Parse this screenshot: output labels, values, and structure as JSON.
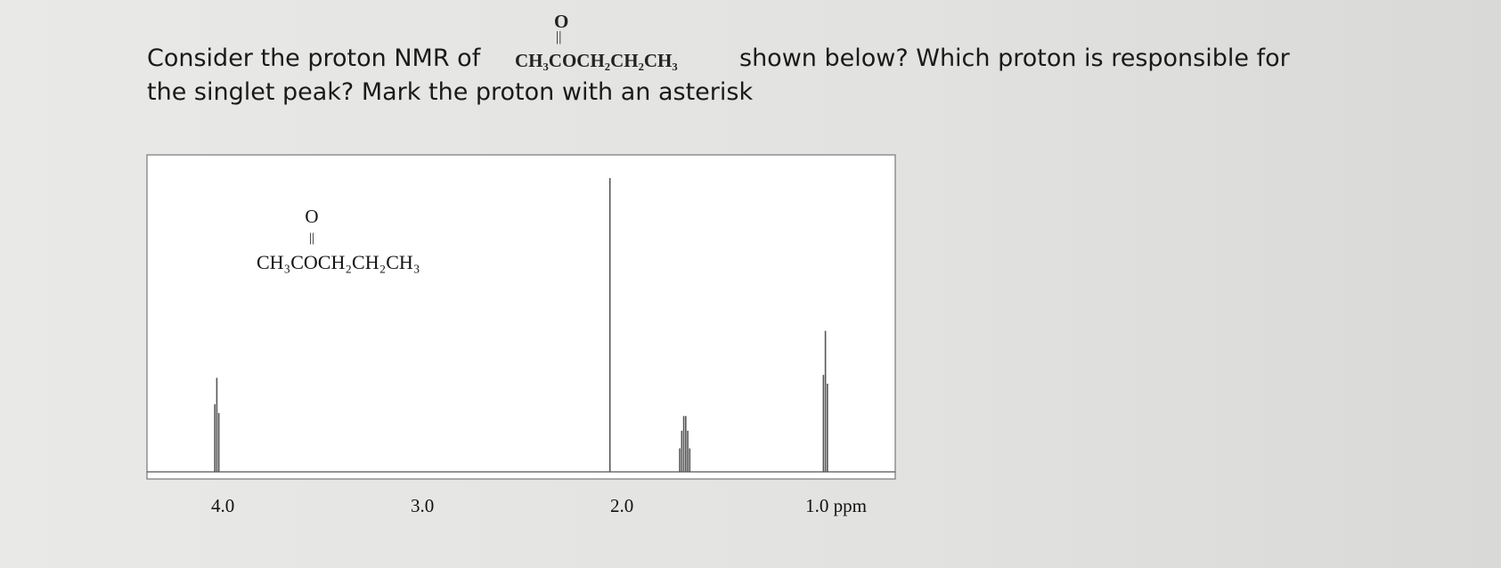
{
  "question": {
    "before": "Consider the proton NMR of",
    "formula": {
      "oxygen": "O",
      "chain": "CH₃COCH₂CH₂CH₃"
    },
    "after": "shown below? Which proton is responsible for",
    "line2": "the singlet peak? Mark the proton with an asterisk"
  },
  "chart_data": {
    "type": "spectrum",
    "annotation": {
      "oxygen": "O",
      "chain": "CH₃COCH₂CH₂CH₃"
    },
    "x": [
      4.04,
      4.03,
      4.02,
      2.06,
      1.71,
      1.7,
      1.69,
      1.68,
      1.67,
      1.66,
      0.99,
      0.98,
      0.97
    ],
    "values": [
      23,
      32,
      20,
      100,
      8,
      14,
      19,
      19,
      14,
      8,
      33,
      48,
      30
    ],
    "xlim": [
      4.38,
      0.63
    ],
    "xticks": [
      {
        "value": 4,
        "label": "4.0"
      },
      {
        "value": 3,
        "label": "3.0"
      },
      {
        "value": 2,
        "label": "2.0"
      },
      {
        "value": 1,
        "label": "1.0 ppm"
      }
    ],
    "color": "#555555"
  }
}
